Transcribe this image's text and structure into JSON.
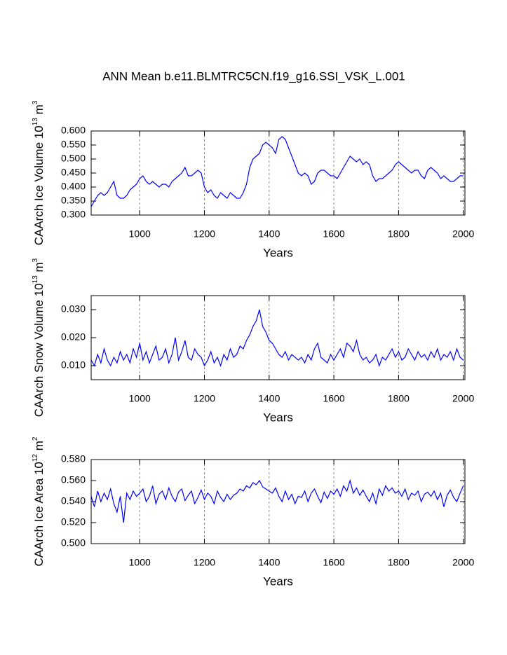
{
  "chart_data": [
    {
      "type": "line",
      "title": "ANN Mean b.e11.BLMTRC5CN.f19_g16.SSI_VSK_L.001",
      "ylabel": [
        "CAArch Ice Volume 10",
        "13",
        " m",
        "3"
      ],
      "xlabel": "Years",
      "xlim": [
        850,
        2005
      ],
      "xticks": [
        1000,
        1200,
        1400,
        1600,
        1800,
        2000
      ],
      "xgrid": true,
      "ylim": [
        0.3,
        0.6
      ],
      "yticks": [
        {
          "value": 0.3,
          "label": "0.300"
        },
        {
          "value": 0.35,
          "label": "0.350"
        },
        {
          "value": 0.4,
          "label": "0.400"
        },
        {
          "value": 0.45,
          "label": "0.450"
        },
        {
          "value": 0.5,
          "label": "0.500"
        },
        {
          "value": 0.55,
          "label": "0.550"
        },
        {
          "value": 0.6,
          "label": "0.600"
        }
      ],
      "x": [
        850,
        860,
        870,
        880,
        890,
        900,
        910,
        920,
        930,
        940,
        950,
        960,
        970,
        980,
        990,
        1000,
        1010,
        1020,
        1030,
        1040,
        1050,
        1060,
        1070,
        1080,
        1090,
        1100,
        1110,
        1120,
        1130,
        1140,
        1150,
        1160,
        1170,
        1180,
        1190,
        1200,
        1210,
        1220,
        1230,
        1240,
        1250,
        1260,
        1270,
        1280,
        1290,
        1300,
        1310,
        1320,
        1330,
        1340,
        1350,
        1360,
        1370,
        1380,
        1390,
        1400,
        1410,
        1420,
        1430,
        1440,
        1450,
        1460,
        1470,
        1480,
        1490,
        1500,
        1510,
        1520,
        1530,
        1540,
        1550,
        1560,
        1570,
        1580,
        1590,
        1600,
        1610,
        1620,
        1630,
        1640,
        1650,
        1660,
        1670,
        1680,
        1690,
        1700,
        1710,
        1720,
        1730,
        1740,
        1750,
        1760,
        1770,
        1780,
        1790,
        1800,
        1810,
        1820,
        1830,
        1840,
        1850,
        1860,
        1870,
        1880,
        1890,
        1900,
        1910,
        1920,
        1930,
        1940,
        1950,
        1960,
        1970,
        1980,
        1990,
        2000
      ],
      "series": [
        {
          "color": "#0000ff",
          "values": [
            0.33,
            0.35,
            0.37,
            0.38,
            0.37,
            0.38,
            0.4,
            0.42,
            0.37,
            0.36,
            0.36,
            0.37,
            0.39,
            0.4,
            0.41,
            0.43,
            0.44,
            0.42,
            0.41,
            0.42,
            0.41,
            0.4,
            0.41,
            0.41,
            0.4,
            0.42,
            0.43,
            0.44,
            0.45,
            0.47,
            0.44,
            0.44,
            0.45,
            0.46,
            0.45,
            0.4,
            0.38,
            0.39,
            0.37,
            0.36,
            0.38,
            0.37,
            0.36,
            0.38,
            0.37,
            0.36,
            0.36,
            0.38,
            0.41,
            0.47,
            0.5,
            0.51,
            0.52,
            0.55,
            0.56,
            0.55,
            0.54,
            0.52,
            0.57,
            0.58,
            0.57,
            0.54,
            0.51,
            0.48,
            0.45,
            0.44,
            0.45,
            0.44,
            0.41,
            0.42,
            0.45,
            0.46,
            0.46,
            0.45,
            0.44,
            0.44,
            0.43,
            0.45,
            0.47,
            0.49,
            0.51,
            0.5,
            0.49,
            0.5,
            0.48,
            0.49,
            0.48,
            0.44,
            0.42,
            0.43,
            0.43,
            0.44,
            0.45,
            0.46,
            0.48,
            0.49,
            0.48,
            0.47,
            0.46,
            0.45,
            0.46,
            0.46,
            0.44,
            0.43,
            0.46,
            0.47,
            0.46,
            0.45,
            0.43,
            0.44,
            0.43,
            0.42,
            0.42,
            0.43,
            0.44,
            0.44
          ]
        }
      ]
    },
    {
      "type": "line",
      "ylabel": [
        "CAArch Snow Volume 10",
        "13",
        " m",
        "3"
      ],
      "xlabel": "Years",
      "xlim": [
        850,
        2005
      ],
      "xticks": [
        1000,
        1200,
        1400,
        1600,
        1800,
        2000
      ],
      "xgrid": true,
      "ylim": [
        0.005,
        0.035
      ],
      "yticks": [
        {
          "value": 0.01,
          "label": "0.010"
        },
        {
          "value": 0.02,
          "label": "0.020"
        },
        {
          "value": 0.03,
          "label": "0.030"
        }
      ],
      "x": [
        850,
        860,
        870,
        880,
        890,
        900,
        910,
        920,
        930,
        940,
        950,
        960,
        970,
        980,
        990,
        1000,
        1010,
        1020,
        1030,
        1040,
        1050,
        1060,
        1070,
        1080,
        1090,
        1100,
        1110,
        1120,
        1130,
        1140,
        1150,
        1160,
        1170,
        1180,
        1190,
        1200,
        1210,
        1220,
        1230,
        1240,
        1250,
        1260,
        1270,
        1280,
        1290,
        1300,
        1310,
        1320,
        1330,
        1340,
        1350,
        1360,
        1370,
        1380,
        1390,
        1400,
        1410,
        1420,
        1430,
        1440,
        1450,
        1460,
        1470,
        1480,
        1490,
        1500,
        1510,
        1520,
        1530,
        1540,
        1550,
        1560,
        1570,
        1580,
        1590,
        1600,
        1610,
        1620,
        1630,
        1640,
        1650,
        1660,
        1670,
        1680,
        1690,
        1700,
        1710,
        1720,
        1730,
        1740,
        1750,
        1760,
        1770,
        1780,
        1790,
        1800,
        1810,
        1820,
        1830,
        1840,
        1850,
        1860,
        1870,
        1880,
        1890,
        1900,
        1910,
        1920,
        1930,
        1940,
        1950,
        1960,
        1970,
        1980,
        1990,
        2000
      ],
      "series": [
        {
          "color": "#0000ff",
          "values": [
            0.012,
            0.01,
            0.014,
            0.011,
            0.016,
            0.012,
            0.01,
            0.013,
            0.011,
            0.015,
            0.012,
            0.014,
            0.011,
            0.016,
            0.013,
            0.018,
            0.012,
            0.015,
            0.011,
            0.014,
            0.017,
            0.012,
            0.013,
            0.016,
            0.011,
            0.014,
            0.02,
            0.012,
            0.015,
            0.019,
            0.013,
            0.012,
            0.016,
            0.014,
            0.013,
            0.01,
            0.012,
            0.015,
            0.011,
            0.013,
            0.01,
            0.014,
            0.012,
            0.016,
            0.013,
            0.014,
            0.017,
            0.016,
            0.019,
            0.021,
            0.024,
            0.026,
            0.03,
            0.024,
            0.022,
            0.019,
            0.018,
            0.016,
            0.014,
            0.013,
            0.015,
            0.012,
            0.014,
            0.013,
            0.012,
            0.013,
            0.011,
            0.014,
            0.012,
            0.016,
            0.018,
            0.013,
            0.012,
            0.011,
            0.014,
            0.012,
            0.014,
            0.016,
            0.013,
            0.018,
            0.017,
            0.015,
            0.019,
            0.014,
            0.012,
            0.013,
            0.011,
            0.012,
            0.014,
            0.01,
            0.013,
            0.012,
            0.014,
            0.016,
            0.013,
            0.015,
            0.012,
            0.013,
            0.016,
            0.014,
            0.012,
            0.015,
            0.013,
            0.014,
            0.012,
            0.015,
            0.013,
            0.016,
            0.012,
            0.014,
            0.013,
            0.015,
            0.012,
            0.016,
            0.013,
            0.012
          ]
        }
      ]
    },
    {
      "type": "line",
      "ylabel": [
        "CAArch Ice Area 10",
        "12",
        " m",
        "2"
      ],
      "xlabel": "Years",
      "xlim": [
        850,
        2005
      ],
      "xticks": [
        1000,
        1200,
        1400,
        1600,
        1800,
        2000
      ],
      "xgrid": true,
      "ylim": [
        0.5,
        0.58
      ],
      "yticks": [
        {
          "value": 0.5,
          "label": "0.500"
        },
        {
          "value": 0.52,
          "label": "0.520"
        },
        {
          "value": 0.54,
          "label": "0.540"
        },
        {
          "value": 0.56,
          "label": "0.560"
        },
        {
          "value": 0.58,
          "label": "0.580"
        }
      ],
      "x": [
        850,
        860,
        870,
        880,
        890,
        900,
        910,
        920,
        930,
        940,
        950,
        960,
        970,
        980,
        990,
        1000,
        1010,
        1020,
        1030,
        1040,
        1050,
        1060,
        1070,
        1080,
        1090,
        1100,
        1110,
        1120,
        1130,
        1140,
        1150,
        1160,
        1170,
        1180,
        1190,
        1200,
        1210,
        1220,
        1230,
        1240,
        1250,
        1260,
        1270,
        1280,
        1290,
        1300,
        1310,
        1320,
        1330,
        1340,
        1350,
        1360,
        1370,
        1380,
        1390,
        1400,
        1410,
        1420,
        1430,
        1440,
        1450,
        1460,
        1470,
        1480,
        1490,
        1500,
        1510,
        1520,
        1530,
        1540,
        1550,
        1560,
        1570,
        1580,
        1590,
        1600,
        1610,
        1620,
        1630,
        1640,
        1650,
        1660,
        1670,
        1680,
        1690,
        1700,
        1710,
        1720,
        1730,
        1740,
        1750,
        1760,
        1770,
        1780,
        1790,
        1800,
        1810,
        1820,
        1830,
        1840,
        1850,
        1860,
        1870,
        1880,
        1890,
        1900,
        1910,
        1920,
        1930,
        1940,
        1950,
        1960,
        1970,
        1980,
        1990,
        2000
      ],
      "series": [
        {
          "color": "#0000ff",
          "values": [
            0.545,
            0.535,
            0.55,
            0.54,
            0.548,
            0.542,
            0.552,
            0.538,
            0.53,
            0.545,
            0.52,
            0.548,
            0.542,
            0.55,
            0.545,
            0.548,
            0.552,
            0.54,
            0.545,
            0.555,
            0.538,
            0.547,
            0.55,
            0.542,
            0.553,
            0.545,
            0.54,
            0.549,
            0.552,
            0.541,
            0.546,
            0.55,
            0.538,
            0.544,
            0.551,
            0.542,
            0.548,
            0.545,
            0.538,
            0.55,
            0.544,
            0.54,
            0.547,
            0.542,
            0.546,
            0.548,
            0.552,
            0.55,
            0.555,
            0.553,
            0.558,
            0.556,
            0.56,
            0.554,
            0.552,
            0.55,
            0.548,
            0.553,
            0.545,
            0.54,
            0.55,
            0.542,
            0.547,
            0.538,
            0.545,
            0.544,
            0.55,
            0.54,
            0.548,
            0.552,
            0.545,
            0.539,
            0.549,
            0.543,
            0.55,
            0.547,
            0.552,
            0.545,
            0.555,
            0.55,
            0.56,
            0.548,
            0.553,
            0.546,
            0.551,
            0.545,
            0.54,
            0.548,
            0.538,
            0.552,
            0.546,
            0.555,
            0.55,
            0.553,
            0.548,
            0.55,
            0.545,
            0.552,
            0.542,
            0.548,
            0.546,
            0.55,
            0.54,
            0.547,
            0.549,
            0.545,
            0.55,
            0.542,
            0.548,
            0.535,
            0.546,
            0.551,
            0.544,
            0.54,
            0.548,
            0.555
          ]
        }
      ]
    }
  ]
}
